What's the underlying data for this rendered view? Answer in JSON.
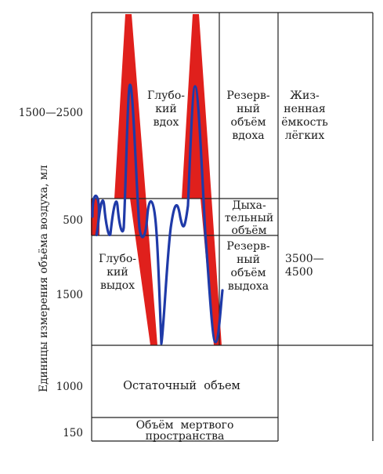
{
  "y_axis": {
    "title": "Единицы измерения объёма воздуха, мл",
    "ticks": [
      "1500—2500",
      "500",
      "1500",
      "1000",
      "150"
    ]
  },
  "regions": {
    "deep_inhale": [
      "Глубо-",
      "кий",
      "вдох"
    ],
    "deep_exhale": [
      "Глубо-",
      "кий",
      "выдох"
    ],
    "inspiratory_reserve": [
      "Резерв-",
      "ный",
      "объём",
      "вдоха"
    ],
    "tidal": [
      "Дыха-",
      "тельный",
      "объём"
    ],
    "expiratory_reserve": [
      "Резерв-",
      "ный",
      "объём",
      "выдоха"
    ],
    "vital_capacity": [
      "Жиз-",
      "ненная",
      "ёмкость",
      "лёгких"
    ],
    "vital_capacity_value": [
      "3500—",
      "4500"
    ],
    "residual": "Остаточный  объем",
    "dead_space": [
      "Объём  мертвого",
      "пространства"
    ]
  },
  "colors": {
    "curve": "#1f3aa8",
    "envelope": "#e0201c",
    "grid": "#222222"
  }
}
